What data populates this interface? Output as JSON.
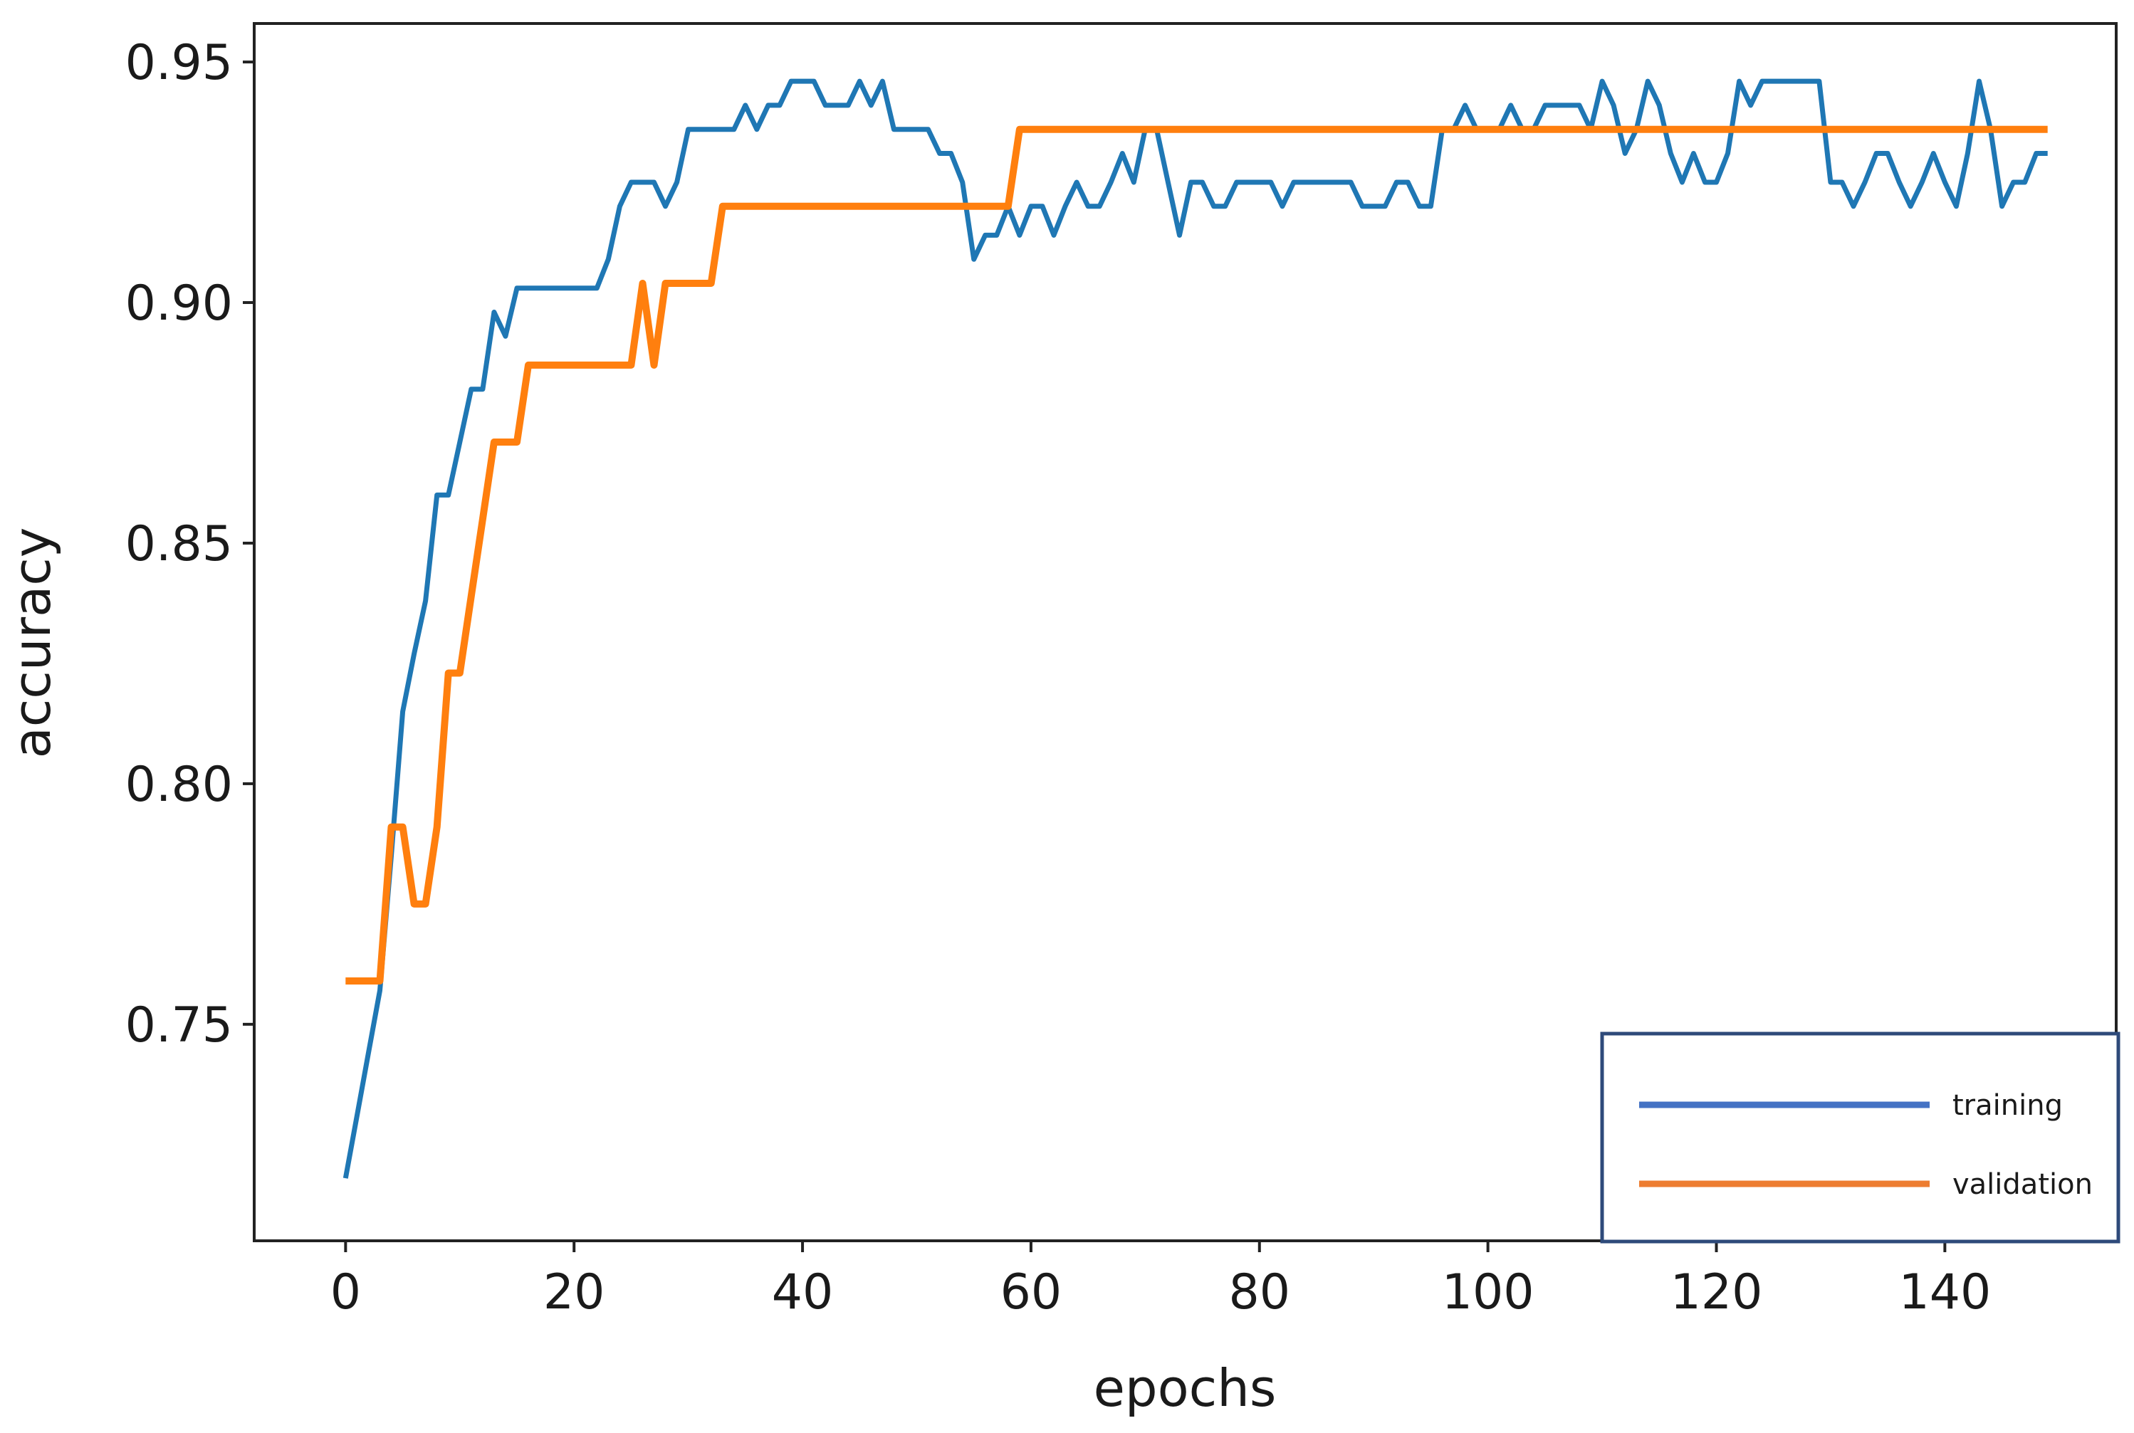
{
  "chart_data": {
    "type": "line",
    "title": "",
    "xlabel": "epochs",
    "ylabel": "accuracy",
    "xlim": [
      -8,
      155
    ],
    "ylim": [
      0.705,
      0.958
    ],
    "xticks": [
      0,
      20,
      40,
      60,
      80,
      100,
      120,
      140
    ],
    "xtick_labels": [
      "0",
      "20",
      "40",
      "60",
      "80",
      "100",
      "120",
      "140"
    ],
    "yticks": [
      0.75,
      0.8,
      0.85,
      0.9,
      0.95
    ],
    "ytick_labels": [
      "0.75",
      "0.80",
      "0.85",
      "0.90",
      "0.95"
    ],
    "grid": false,
    "legend_position": "bottom-right",
    "series": [
      {
        "name": "training",
        "color": "#1f77b4",
        "x": [
          0,
          1,
          2,
          3,
          4,
          5,
          6,
          7,
          8,
          9,
          10,
          11,
          12,
          13,
          14,
          15,
          16,
          17,
          18,
          19,
          20,
          21,
          22,
          23,
          24,
          25,
          26,
          27,
          28,
          29,
          30,
          31,
          32,
          33,
          34,
          35,
          36,
          37,
          38,
          39,
          40,
          41,
          42,
          43,
          44,
          45,
          46,
          47,
          48,
          49,
          50,
          51,
          52,
          53,
          54,
          55,
          56,
          57,
          58,
          59,
          60,
          61,
          62,
          63,
          64,
          65,
          66,
          67,
          68,
          69,
          70,
          71,
          72,
          73,
          74,
          75,
          76,
          77,
          78,
          79,
          80,
          81,
          82,
          83,
          84,
          85,
          86,
          87,
          88,
          89,
          90,
          91,
          92,
          93,
          94,
          95,
          96,
          97,
          98,
          99,
          100,
          101,
          102,
          103,
          104,
          105,
          106,
          107,
          108,
          109,
          110,
          111,
          112,
          113,
          114,
          115,
          116,
          117,
          118,
          119,
          120,
          121,
          122,
          123,
          124,
          125,
          126,
          127,
          128,
          129,
          130,
          131,
          132,
          133,
          134,
          135,
          136,
          137,
          138,
          139,
          140,
          141,
          142,
          143,
          144,
          145,
          146,
          147,
          148,
          149
        ],
        "y": [
          0.718,
          0.731,
          0.744,
          0.757,
          0.785,
          0.815,
          0.827,
          0.838,
          0.86,
          0.86,
          0.871,
          0.882,
          0.882,
          0.898,
          0.893,
          0.903,
          0.903,
          0.903,
          0.903,
          0.903,
          0.903,
          0.903,
          0.903,
          0.909,
          0.92,
          0.925,
          0.925,
          0.925,
          0.92,
          0.925,
          0.936,
          0.936,
          0.936,
          0.936,
          0.936,
          0.941,
          0.936,
          0.941,
          0.941,
          0.946,
          0.946,
          0.946,
          0.941,
          0.941,
          0.941,
          0.946,
          0.941,
          0.946,
          0.936,
          0.936,
          0.936,
          0.936,
          0.931,
          0.931,
          0.925,
          0.909,
          0.914,
          0.914,
          0.92,
          0.914,
          0.92,
          0.92,
          0.914,
          0.92,
          0.925,
          0.92,
          0.92,
          0.925,
          0.931,
          0.925,
          0.936,
          0.936,
          0.925,
          0.914,
          0.925,
          0.925,
          0.92,
          0.92,
          0.925,
          0.925,
          0.925,
          0.925,
          0.92,
          0.925,
          0.925,
          0.925,
          0.925,
          0.925,
          0.925,
          0.92,
          0.92,
          0.92,
          0.925,
          0.925,
          0.92,
          0.92,
          0.936,
          0.936,
          0.941,
          0.936,
          0.936,
          0.936,
          0.941,
          0.936,
          0.936,
          0.941,
          0.941,
          0.941,
          0.941,
          0.936,
          0.946,
          0.941,
          0.931,
          0.936,
          0.946,
          0.941,
          0.931,
          0.925,
          0.931,
          0.925,
          0.925,
          0.931,
          0.946,
          0.941,
          0.946,
          0.946,
          0.946,
          0.946,
          0.946,
          0.946,
          0.925,
          0.925,
          0.92,
          0.925,
          0.931,
          0.931,
          0.925,
          0.92,
          0.925,
          0.931,
          0.925,
          0.92,
          0.931,
          0.946,
          0.936,
          0.92,
          0.925,
          0.925,
          0.931,
          0.931
        ]
      },
      {
        "name": "validation",
        "color": "#ff7f0e",
        "x": [
          0,
          1,
          2,
          3,
          4,
          5,
          6,
          7,
          8,
          9,
          10,
          11,
          12,
          13,
          14,
          15,
          16,
          17,
          18,
          19,
          20,
          21,
          22,
          23,
          24,
          25,
          26,
          27,
          28,
          29,
          30,
          31,
          32,
          33,
          34,
          35,
          36,
          37,
          38,
          39,
          40,
          41,
          42,
          43,
          44,
          45,
          46,
          47,
          48,
          49,
          50,
          51,
          52,
          53,
          54,
          55,
          56,
          57,
          58,
          59,
          60,
          61,
          62,
          63,
          64,
          65,
          66,
          67,
          68,
          69,
          70,
          71,
          72,
          73,
          74,
          75,
          76,
          77,
          78,
          79,
          80,
          81,
          82,
          83,
          84,
          85,
          86,
          87,
          88,
          89,
          90,
          91,
          92,
          93,
          94,
          95,
          96,
          97,
          98,
          99,
          100,
          101,
          102,
          103,
          104,
          105,
          106,
          107,
          108,
          109,
          110,
          111,
          112,
          113,
          114,
          115,
          116,
          117,
          118,
          119,
          120,
          121,
          122,
          123,
          124,
          125,
          126,
          127,
          128,
          129,
          130,
          131,
          132,
          133,
          134,
          135,
          136,
          137,
          138,
          139,
          140,
          141,
          142,
          143,
          144,
          145,
          146,
          147,
          148,
          149
        ],
        "y": [
          0.759,
          0.759,
          0.759,
          0.759,
          0.791,
          0.791,
          0.775,
          0.775,
          0.791,
          0.823,
          0.823,
          0.839,
          0.855,
          0.871,
          0.871,
          0.871,
          0.887,
          0.887,
          0.887,
          0.887,
          0.887,
          0.887,
          0.887,
          0.887,
          0.887,
          0.887,
          0.904,
          0.887,
          0.904,
          0.904,
          0.904,
          0.904,
          0.904,
          0.92,
          0.92,
          0.92,
          0.92,
          0.92,
          0.92,
          0.92,
          0.92,
          0.92,
          0.92,
          0.92,
          0.92,
          0.92,
          0.92,
          0.92,
          0.92,
          0.92,
          0.92,
          0.92,
          0.92,
          0.92,
          0.92,
          0.92,
          0.92,
          0.92,
          0.92,
          0.936,
          0.936,
          0.936,
          0.936,
          0.936,
          0.936,
          0.936,
          0.936,
          0.936,
          0.936,
          0.936,
          0.936,
          0.936,
          0.936,
          0.936,
          0.936,
          0.936,
          0.936,
          0.936,
          0.936,
          0.936,
          0.936,
          0.936,
          0.936,
          0.936,
          0.936,
          0.936,
          0.936,
          0.936,
          0.936,
          0.936,
          0.936,
          0.936,
          0.936,
          0.936,
          0.936,
          0.936,
          0.936,
          0.936,
          0.936,
          0.936,
          0.936,
          0.936,
          0.936,
          0.936,
          0.936,
          0.936,
          0.936,
          0.936,
          0.936,
          0.936,
          0.936,
          0.936,
          0.936,
          0.936,
          0.936,
          0.936,
          0.936,
          0.936,
          0.936,
          0.936,
          0.936,
          0.936,
          0.936,
          0.936,
          0.936,
          0.936,
          0.936,
          0.936,
          0.936,
          0.936,
          0.936,
          0.936,
          0.936,
          0.936,
          0.936,
          0.936,
          0.936,
          0.936,
          0.936,
          0.936,
          0.936,
          0.936,
          0.936,
          0.936,
          0.936,
          0.936,
          0.936,
          0.936,
          0.936,
          0.936
        ]
      }
    ]
  },
  "legend": {
    "border_color": "#2e4a7a",
    "items": [
      {
        "label": "training",
        "color": "#4472c4"
      },
      {
        "label": "validation",
        "color": "#ed7d31"
      }
    ]
  }
}
